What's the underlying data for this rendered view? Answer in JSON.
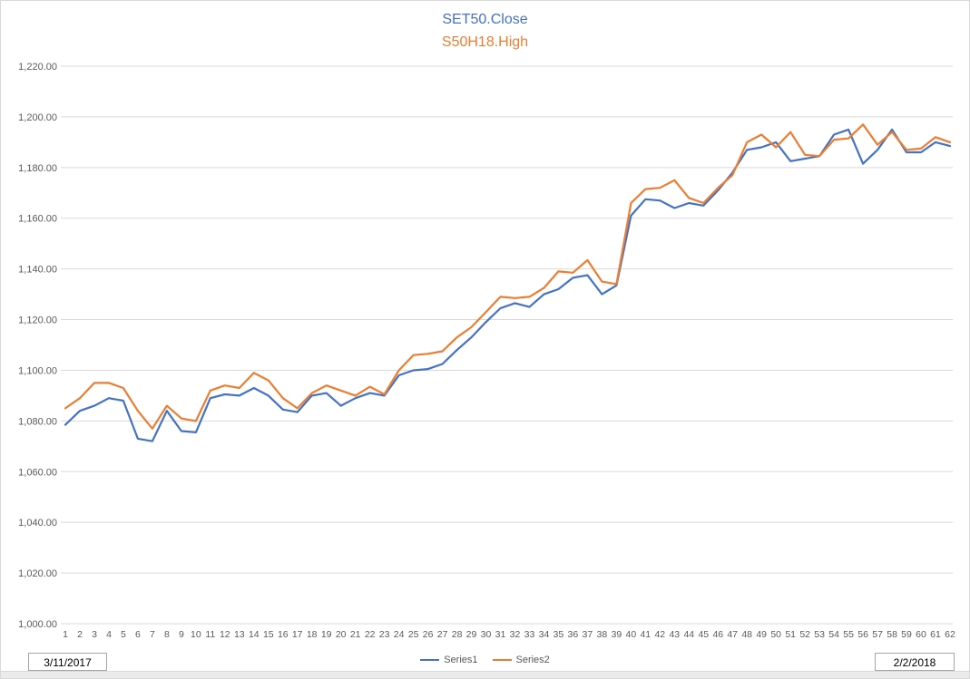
{
  "title": {
    "line1": "SET50.Close",
    "line2": "S50H18.High"
  },
  "colors": {
    "series1": "#4472C4",
    "series2": "#ED7D31",
    "gridline": "#D9D9D9",
    "axis_text": "#595959"
  },
  "legend": [
    {
      "label": "Series1",
      "color": "#4472C4"
    },
    {
      "label": "Series2",
      "color": "#ED7D31"
    }
  ],
  "footer": {
    "left_date": "3/11/2017",
    "right_date": "2/2/2018"
  },
  "chart_data": {
    "type": "line",
    "title": "SET50.Close / S50H18.High",
    "xlabel": "",
    "ylabel": "",
    "ylim": [
      1000,
      1220
    ],
    "ytick_step": 20,
    "grid": true,
    "legend_position": "bottom",
    "x": [
      1,
      2,
      3,
      4,
      5,
      6,
      7,
      8,
      9,
      10,
      11,
      12,
      13,
      14,
      15,
      16,
      17,
      18,
      19,
      20,
      21,
      22,
      23,
      24,
      25,
      26,
      27,
      28,
      29,
      30,
      31,
      32,
      33,
      34,
      35,
      36,
      37,
      38,
      39,
      40,
      41,
      42,
      43,
      44,
      45,
      46,
      47,
      48,
      49,
      50,
      51,
      52,
      53,
      54,
      55,
      56,
      57,
      58,
      59,
      60,
      61,
      62
    ],
    "series": [
      {
        "name": "Series1",
        "color": "#4472C4",
        "values": [
          1078.5,
          1084,
          1086,
          1089,
          1088,
          1073,
          1072,
          1084,
          1076,
          1075.5,
          1089,
          1090.5,
          1090,
          1093,
          1090,
          1084.5,
          1083.5,
          1090,
          1091,
          1086,
          1089,
          1091,
          1090,
          1098,
          1100,
          1100.5,
          1102.5,
          1108,
          1113,
          1119,
          1124.5,
          1126.5,
          1125,
          1130,
          1132,
          1136.5,
          1137.5,
          1130,
          1133.5,
          1161,
          1167.5,
          1167,
          1164,
          1166,
          1165,
          1171,
          1178,
          1187,
          1188,
          1190,
          1182.5,
          1183.5,
          1184.5,
          1193,
          1195,
          1181.5,
          1187,
          1195,
          1186,
          1186,
          1190,
          1188.5
        ]
      },
      {
        "name": "Series2",
        "color": "#ED7D31",
        "values": [
          1085,
          1089,
          1095,
          1095,
          1093,
          1084,
          1077,
          1086,
          1081,
          1080,
          1092,
          1094,
          1093,
          1099,
          1096,
          1089,
          1085,
          1091,
          1094,
          1092,
          1090,
          1093.5,
          1090.5,
          1100,
          1106,
          1106.5,
          1107.5,
          1113,
          1117,
          1123,
          1129,
          1128.5,
          1129,
          1132.5,
          1139,
          1138.5,
          1143.5,
          1135,
          1134,
          1166,
          1171.5,
          1172,
          1175,
          1168,
          1166,
          1172,
          1177,
          1190,
          1193,
          1188,
          1194,
          1185,
          1184.5,
          1191,
          1191.5,
          1197,
          1189,
          1194,
          1187,
          1187.5,
          1192,
          1190
        ]
      }
    ]
  }
}
